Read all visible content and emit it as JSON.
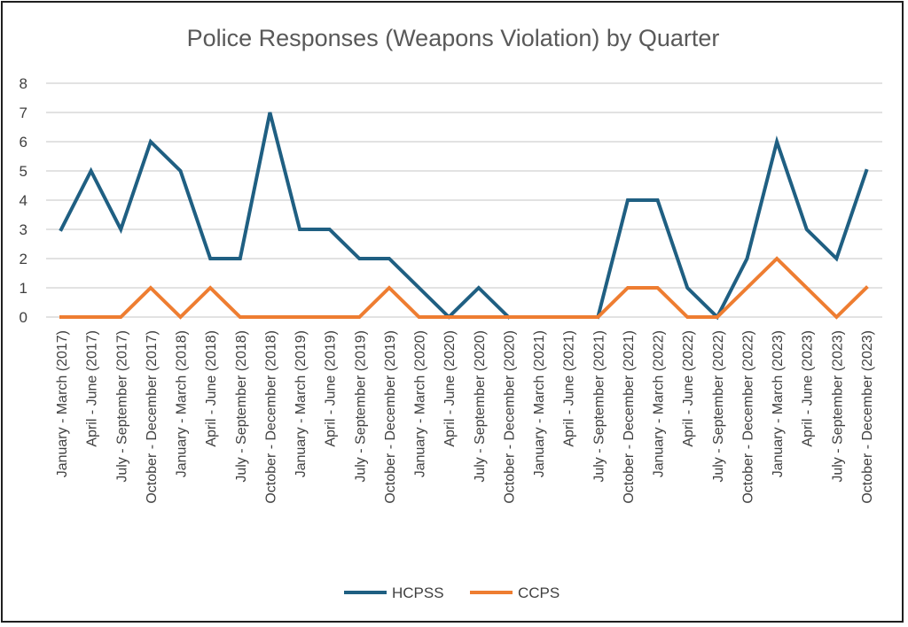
{
  "chart_data": {
    "type": "line",
    "title": "Police Responses (Weapons  Violation) by Quarter",
    "xlabel": "",
    "ylabel": "",
    "ylim": [
      0,
      8
    ],
    "yticks": [
      "0",
      "1",
      "2",
      "3",
      "4",
      "5",
      "6",
      "7",
      "8"
    ],
    "grid": true,
    "legend_position": "bottom",
    "categories": [
      "January - March (2017)",
      "April - June (2017)",
      "July - September (2017)",
      "October - December (2017)",
      "January - March (2018)",
      "April - June (2018)",
      "July - September (2018)",
      "October - December (2018)",
      "January - March (2019)",
      "April - June (2019)",
      "July - September (2019)",
      "October - December (2019)",
      "January - March (2020)",
      "April - June (2020)",
      "July - September (2020)",
      "October - December (2020)",
      "January - March (2021)",
      "April - June (2021)",
      "July - September (2021)",
      "October - December (2021)",
      "January - March (2022)",
      "April - June (2022)",
      "July - September (2022)",
      "October - December (2022)",
      "January - March (2023)",
      "April - June (2023)",
      "July - September (2023)",
      "October - December (2023)"
    ],
    "series": [
      {
        "name": "HCPSS",
        "color": "#1f5f82",
        "values": [
          3,
          5,
          3,
          6,
          5,
          2,
          2,
          7,
          3,
          3,
          2,
          2,
          1,
          0,
          1,
          0,
          null,
          null,
          0,
          4,
          4,
          1,
          0,
          2,
          6,
          3,
          2,
          5
        ]
      },
      {
        "name": "CCPS",
        "color": "#ee7d31",
        "values": [
          0,
          0,
          0,
          1,
          0,
          1,
          0,
          0,
          0,
          0,
          0,
          1,
          0,
          0,
          0,
          0,
          0,
          0,
          0,
          1,
          1,
          0,
          0,
          1,
          2,
          1,
          0,
          1
        ]
      }
    ]
  }
}
